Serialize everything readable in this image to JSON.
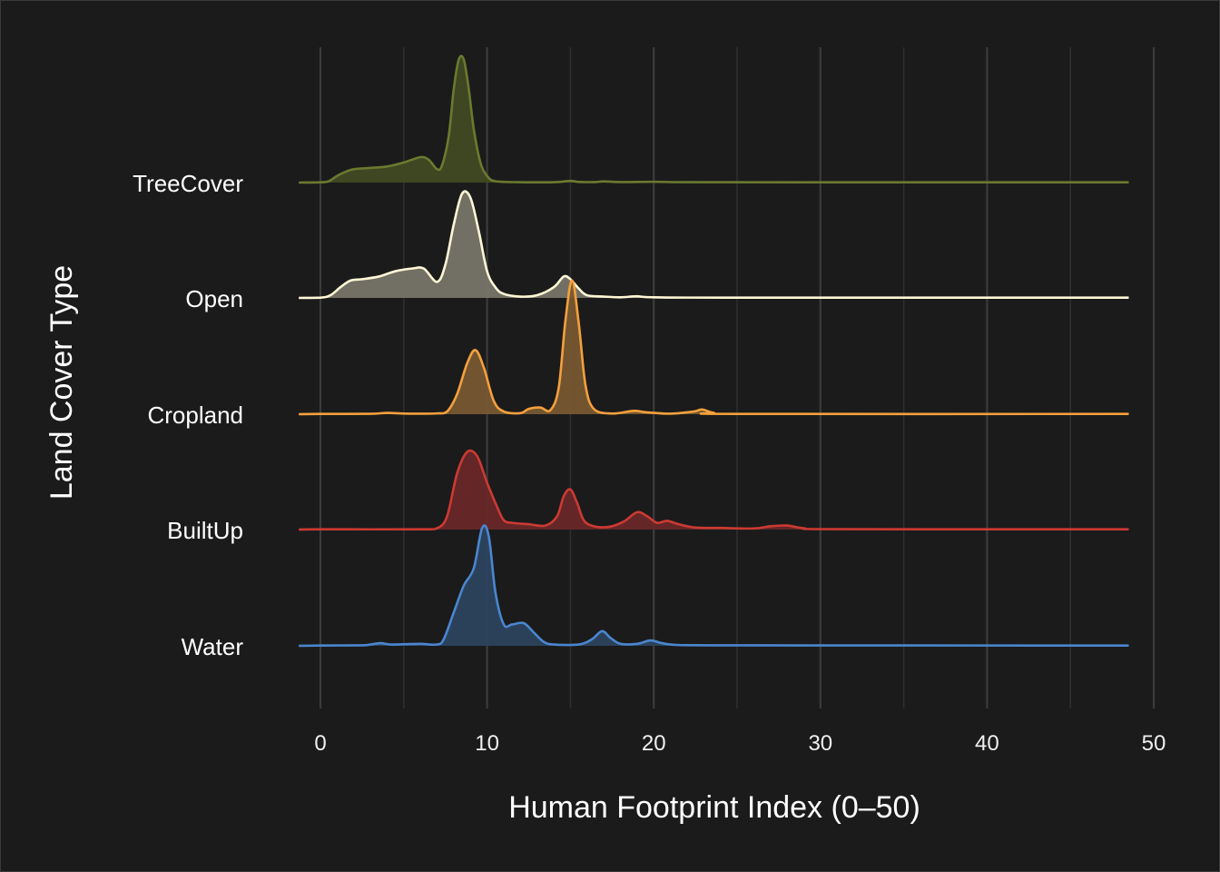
{
  "chart_data": {
    "type": "ridgeline",
    "xlabel": "Human Footprint Index (0–50)",
    "ylabel": "Land Cover Type",
    "xlim": [
      -1.3,
      48.5
    ],
    "x_ticks": [
      "0",
      "10",
      "20",
      "30",
      "40",
      "50"
    ],
    "x_tick_values": [
      0,
      10,
      20,
      30,
      40,
      50
    ],
    "grid_minor_values": [
      5,
      15,
      25,
      35,
      45
    ],
    "grid": true,
    "background": "#1b1b1b",
    "ridge_scale": 1.15,
    "series": [
      {
        "name": "TreeCover",
        "color": "#6b7a2f",
        "fill": "#414a23",
        "density": [
          [
            -1.3,
            0
          ],
          [
            0,
            0.002
          ],
          [
            0.5,
            0.01
          ],
          [
            1,
            0.05
          ],
          [
            1.5,
            0.08
          ],
          [
            2,
            0.1
          ],
          [
            3,
            0.11
          ],
          [
            4,
            0.12
          ],
          [
            5,
            0.15
          ],
          [
            6,
            0.19
          ],
          [
            6.5,
            0.17
          ],
          [
            7,
            0.1
          ],
          [
            7.3,
            0.13
          ],
          [
            7.7,
            0.35
          ],
          [
            8,
            0.7
          ],
          [
            8.3,
            0.92
          ],
          [
            8.6,
            0.92
          ],
          [
            8.9,
            0.7
          ],
          [
            9.2,
            0.4
          ],
          [
            9.6,
            0.15
          ],
          [
            10,
            0.05
          ],
          [
            10.5,
            0.01
          ],
          [
            12,
            0.003
          ],
          [
            14,
            0.003
          ],
          [
            15,
            0.012
          ],
          [
            15.5,
            0.005
          ],
          [
            16.5,
            0.004
          ],
          [
            17,
            0.009
          ],
          [
            18,
            0.004
          ],
          [
            20,
            0.006
          ],
          [
            22,
            0.003
          ],
          [
            30,
            0.002
          ],
          [
            48.5,
            0.002
          ]
        ]
      },
      {
        "name": "Open",
        "color": "#fff7d6",
        "fill": "#7a776a",
        "density": [
          [
            -1.3,
            0
          ],
          [
            0,
            0.002
          ],
          [
            0.6,
            0.02
          ],
          [
            1.2,
            0.08
          ],
          [
            1.8,
            0.13
          ],
          [
            2.5,
            0.14
          ],
          [
            3.5,
            0.16
          ],
          [
            4.5,
            0.2
          ],
          [
            5.5,
            0.22
          ],
          [
            6.2,
            0.22
          ],
          [
            7,
            0.12
          ],
          [
            7.5,
            0.25
          ],
          [
            8,
            0.55
          ],
          [
            8.5,
            0.78
          ],
          [
            9,
            0.75
          ],
          [
            9.5,
            0.5
          ],
          [
            10,
            0.2
          ],
          [
            10.5,
            0.08
          ],
          [
            11,
            0.03
          ],
          [
            12,
            0.01
          ],
          [
            13,
            0.02
          ],
          [
            14,
            0.08
          ],
          [
            14.6,
            0.16
          ],
          [
            15,
            0.14
          ],
          [
            15.5,
            0.07
          ],
          [
            16,
            0.02
          ],
          [
            17,
            0.01
          ],
          [
            18,
            0.005
          ],
          [
            19,
            0.012
          ],
          [
            20,
            0.005
          ],
          [
            25,
            0.002
          ],
          [
            48.5,
            0.002
          ]
        ]
      },
      {
        "name": "Cropland",
        "color": "#f5a03c",
        "fill": "#7a5a32",
        "density": [
          [
            -1.3,
            0
          ],
          [
            0,
            0.002
          ],
          [
            3,
            0.003
          ],
          [
            4,
            0.01
          ],
          [
            5,
            0.005
          ],
          [
            6,
            0.004
          ],
          [
            7,
            0.006
          ],
          [
            7.6,
            0.02
          ],
          [
            8.2,
            0.15
          ],
          [
            8.8,
            0.38
          ],
          [
            9.3,
            0.48
          ],
          [
            9.8,
            0.35
          ],
          [
            10.4,
            0.1
          ],
          [
            11,
            0.02
          ],
          [
            12,
            0.008
          ],
          [
            12.5,
            0.04
          ],
          [
            13.2,
            0.05
          ],
          [
            13.8,
            0.03
          ],
          [
            14.3,
            0.2
          ],
          [
            14.7,
            0.7
          ],
          [
            15.1,
            1.0
          ],
          [
            15.5,
            0.68
          ],
          [
            15.9,
            0.22
          ],
          [
            16.4,
            0.04
          ],
          [
            17.5,
            0.005
          ],
          [
            18.8,
            0.025
          ],
          [
            19.5,
            0.015
          ],
          [
            21,
            0.004
          ],
          [
            22.4,
            0.02
          ],
          [
            22.9,
            0.035
          ],
          [
            23.6,
            0.01
          ],
          [
            25,
            0.002
          ],
          [
            48.5,
            0.002
          ]
        ]
      },
      {
        "name": "BuiltUp",
        "color": "#cc3a33",
        "fill": "#6a2728",
        "density": [
          [
            -1.3,
            0
          ],
          [
            0,
            0.002
          ],
          [
            6,
            0.002
          ],
          [
            7,
            0.01
          ],
          [
            7.6,
            0.1
          ],
          [
            8.2,
            0.42
          ],
          [
            8.8,
            0.58
          ],
          [
            9.4,
            0.55
          ],
          [
            10,
            0.35
          ],
          [
            10.6,
            0.17
          ],
          [
            11,
            0.07
          ],
          [
            11.5,
            0.05
          ],
          [
            12.5,
            0.04
          ],
          [
            13.5,
            0.03
          ],
          [
            14.2,
            0.1
          ],
          [
            14.6,
            0.25
          ],
          [
            15,
            0.3
          ],
          [
            15.4,
            0.2
          ],
          [
            15.8,
            0.07
          ],
          [
            16.4,
            0.025
          ],
          [
            17.3,
            0.02
          ],
          [
            18.2,
            0.06
          ],
          [
            19,
            0.13
          ],
          [
            19.6,
            0.1
          ],
          [
            20.2,
            0.05
          ],
          [
            20.8,
            0.065
          ],
          [
            21.5,
            0.04
          ],
          [
            22.5,
            0.015
          ],
          [
            24,
            0.012
          ],
          [
            26,
            0.008
          ],
          [
            27,
            0.025
          ],
          [
            28,
            0.03
          ],
          [
            29,
            0.01
          ],
          [
            31,
            0.003
          ],
          [
            48.5,
            0.002
          ]
        ]
      },
      {
        "name": "Water",
        "color": "#4a86d0",
        "fill": "#2c4460",
        "density": [
          [
            -1.3,
            0
          ],
          [
            0,
            0.002
          ],
          [
            2.5,
            0.004
          ],
          [
            3,
            0.01
          ],
          [
            3.6,
            0.02
          ],
          [
            4.2,
            0.01
          ],
          [
            5,
            0.012
          ],
          [
            6,
            0.015
          ],
          [
            7,
            0.01
          ],
          [
            7.4,
            0.05
          ],
          [
            8,
            0.25
          ],
          [
            8.6,
            0.45
          ],
          [
            9.2,
            0.58
          ],
          [
            9.7,
            0.88
          ],
          [
            10.1,
            0.82
          ],
          [
            10.5,
            0.4
          ],
          [
            11,
            0.16
          ],
          [
            11.5,
            0.16
          ],
          [
            12.2,
            0.17
          ],
          [
            12.8,
            0.1
          ],
          [
            13.4,
            0.03
          ],
          [
            14,
            0.01
          ],
          [
            15.5,
            0.01
          ],
          [
            16.3,
            0.05
          ],
          [
            16.9,
            0.11
          ],
          [
            17.4,
            0.06
          ],
          [
            18,
            0.015
          ],
          [
            19,
            0.015
          ],
          [
            19.8,
            0.04
          ],
          [
            20.5,
            0.02
          ],
          [
            21.5,
            0.006
          ],
          [
            25,
            0.004
          ],
          [
            30,
            0.003
          ],
          [
            48.5,
            0.002
          ]
        ]
      }
    ]
  }
}
